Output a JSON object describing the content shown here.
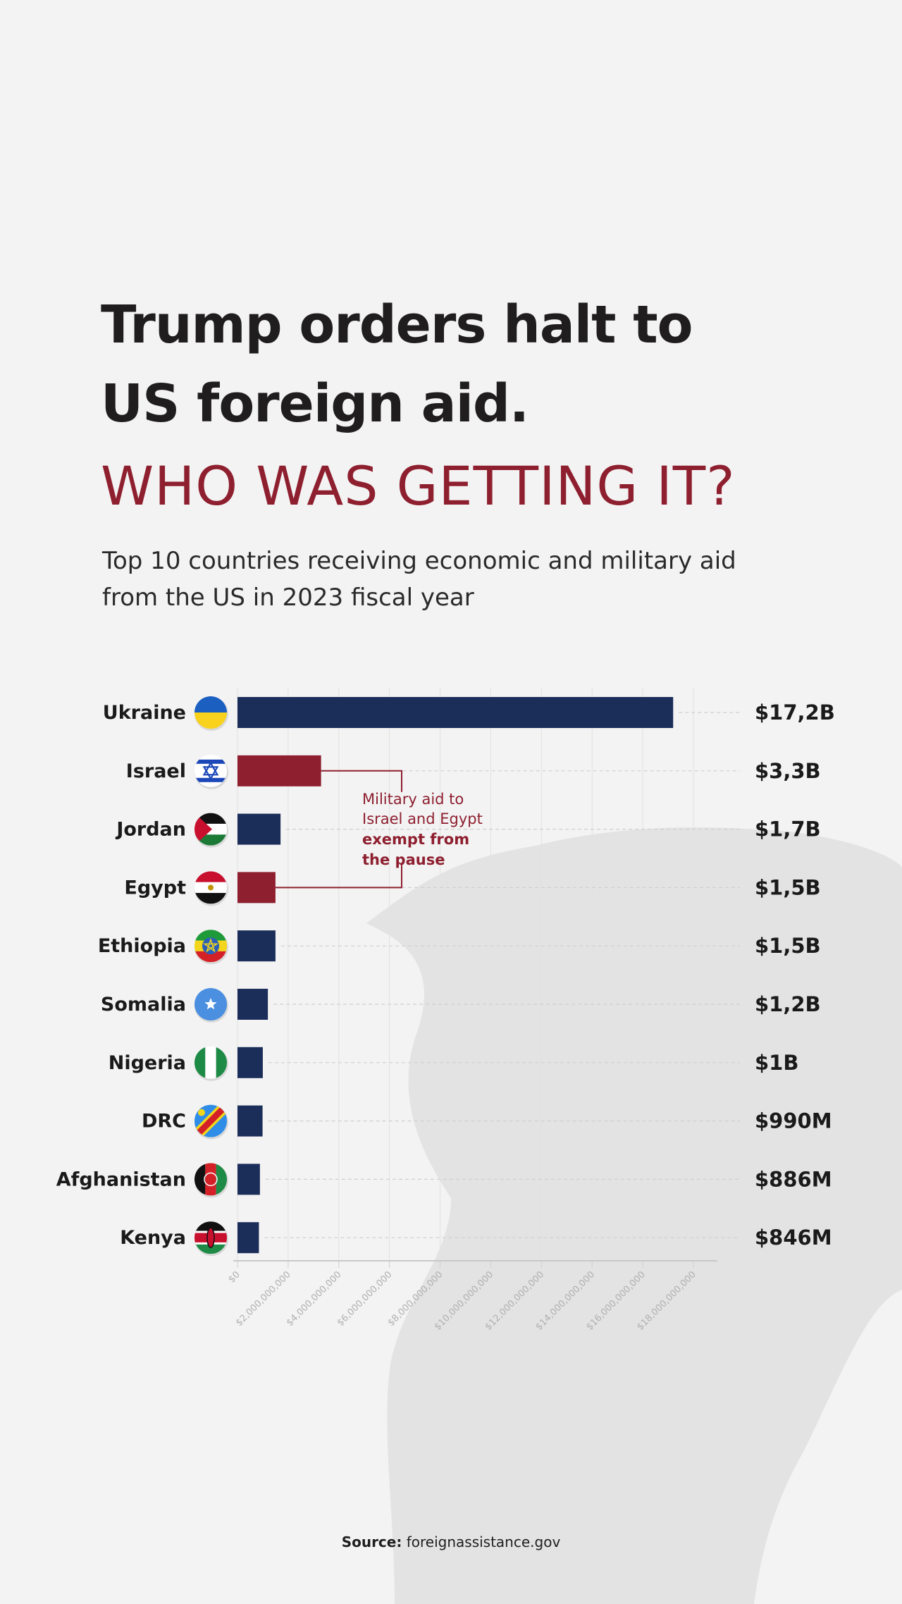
{
  "header": {
    "title_line1": "Trump orders halt to",
    "title_line2": "US foreign aid.",
    "headline": "WHO WAS GETTING IT?",
    "subtitle_line1": "Top 10 countries receiving economic and military aid",
    "subtitle_line2": "from the US in 2023 fiscal year"
  },
  "annotation": {
    "line1": "Military aid to",
    "line2": "Israel and Egypt",
    "line3": "exempt from",
    "line4": "the pause"
  },
  "source": {
    "label": "Source:",
    "value": "foreignassistance.gov"
  },
  "colors": {
    "navy": "#1b2d59",
    "accent_red": "#8e1f2f",
    "background": "#f3f3f3"
  },
  "chart_data": {
    "type": "bar",
    "orientation": "horizontal",
    "categories": [
      "Ukraine",
      "Israel",
      "Jordan",
      "Egypt",
      "Ethiopia",
      "Somalia",
      "Nigeria",
      "DRC",
      "Afghanistan",
      "Kenya"
    ],
    "values": [
      17200000000,
      3300000000,
      1700000000,
      1500000000,
      1500000000,
      1200000000,
      1000000000,
      990000000,
      886000000,
      846000000
    ],
    "value_labels": [
      "$17,2B",
      "$3,3B",
      "$1,7B",
      "$1,5B",
      "$1,5B",
      "$1,2B",
      "$1B",
      "$990M",
      "$886M",
      "$846M"
    ],
    "highlighted": [
      "Israel",
      "Egypt"
    ],
    "flags": [
      "ukraine-flag",
      "israel-flag",
      "jordan-flag",
      "egypt-flag",
      "ethiopia-flag",
      "somalia-flag",
      "nigeria-flag",
      "drc-flag",
      "afghanistan-flag",
      "kenya-flag"
    ],
    "xlim": [
      0,
      18000000000
    ],
    "xticks": [
      0,
      2000000000,
      4000000000,
      6000000000,
      8000000000,
      10000000000,
      12000000000,
      14000000000,
      16000000000,
      18000000000
    ],
    "xtick_labels": [
      "$0",
      "$2,000,000,000",
      "$4,000,000,000",
      "$6,000,000,000",
      "$8,000,000,000",
      "$10,000,000,000",
      "$12,000,000,000",
      "$14,000,000,000",
      "$16,000,000,000",
      "$18,000,000,000"
    ],
    "grid": true
  }
}
